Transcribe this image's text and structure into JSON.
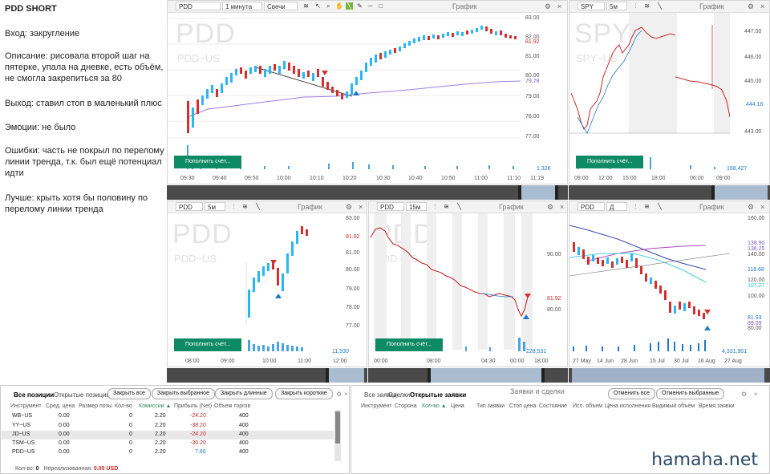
{
  "notes": {
    "title": "PDD SHORT",
    "lines": [
      "Вход: закругление",
      "Описание: рисовала второй шаг на пятерке, упала на дневке, есть объём, не смогла закрепиться за 80",
      "Выход: ставил стоп в маленький плюс",
      "Эмоции: не было",
      "Ошибки: часть не покрыл по перелому линии тренда, т.к. был ещё потенциал идти",
      "Лучше: крыть хотя бы половину по перелому линии тренда"
    ]
  },
  "common": {
    "chart_label": "График",
    "deposit_button": "Пополнить счёт...",
    "close": "×"
  },
  "charts": [
    {
      "ticker": "PDD",
      "timeframe": "1 минута",
      "type": "Свечи",
      "watermark": "PDD",
      "watermark_sub": "PDD~US",
      "y_ticks": [
        "83.00",
        "82.00",
        "81.00",
        "80.00",
        "79.00",
        "78.00",
        "77.00"
      ],
      "price_label": "81.92",
      "ma_label": "79.78",
      "volume_label": "1,326",
      "x_ticks": [
        "09:30",
        "09:40",
        "09:50",
        "10:00",
        "10:10",
        "10:20",
        "10:30",
        "10:40",
        "10:50",
        "11:00",
        "11:10"
      ],
      "extra_x": "11:19"
    },
    {
      "ticker": "SPY",
      "timeframe": "5м",
      "watermark": "SPY",
      "watermark_sub": "SPY~US",
      "y_ticks": [
        "447.00",
        "446.00",
        "445.00",
        "444.00",
        "443.00"
      ],
      "price_label": "444.16",
      "volume_label": "168,427",
      "x_ticks": [
        "09:00",
        "12:00",
        "15:00",
        "18:00",
        "06:00",
        "09:00"
      ]
    },
    {
      "ticker": "PDD",
      "timeframe": "5м",
      "watermark": "PDD",
      "watermark_sub": "PDD~US",
      "y_ticks": [
        "83.00",
        "82.00",
        "81.00",
        "80.00",
        "79.00",
        "78.00",
        "77.00"
      ],
      "price_label": "81.92",
      "volume_label": "11,530",
      "x_ticks": [
        "08:00",
        "09:00",
        "10:00",
        "11:00",
        "12:00"
      ]
    },
    {
      "ticker": "PDD",
      "timeframe": "15м",
      "watermark": "PDD",
      "watermark_sub": "PDD~US",
      "y_ticks": [
        "90.00",
        "80.00"
      ],
      "price_label": "81.92",
      "volume_label": "228,531",
      "x_ticks": [
        "00:00",
        "08:00",
        "04:30",
        "00:00",
        "18:00"
      ]
    },
    {
      "ticker": "PDD",
      "timeframe": "Д",
      "watermark": "",
      "y_ticks": [
        "160.00",
        "140.00",
        "120.00",
        "100.00",
        "80.00"
      ],
      "ma_labels": [
        "138.90",
        "136.25",
        "118.68",
        "107.27",
        "89.09"
      ],
      "price_label": "81.93",
      "volume_label": "4,331,901",
      "x_ticks": [
        "27 May",
        "14 Jun",
        "28 Jun",
        "15 Jul",
        "30 Jul",
        "16 Aug",
        "27 Aug"
      ]
    }
  ],
  "positions": {
    "tabs": [
      "Все позиции",
      "Открытые позиции"
    ],
    "buttons": [
      "Закрыть все",
      "Закрыть выбранное",
      "Закрыть длинные",
      "Закрыть короткие"
    ],
    "columns": [
      "Инструмент",
      "Сред. цена",
      "Размер позы",
      "Кол-во",
      "Комиссии ▲",
      "Прибыль (Net)",
      "Объем торгов"
    ],
    "rows": [
      [
        "WB~US",
        "0.00",
        "",
        "0",
        "2.20",
        "-24.20",
        "400"
      ],
      [
        "YY~US",
        "0.00",
        "",
        "0",
        "2.20",
        "-38.20",
        "400"
      ],
      [
        "JD~US",
        "0.00",
        "",
        "0",
        "2.20",
        "-24.20",
        "400"
      ],
      [
        "TSM~US",
        "0.00",
        "",
        "0",
        "2.20",
        "-30.20",
        "400"
      ],
      [
        "PDD~US",
        "0.00",
        "",
        "0",
        "2.20",
        "7.80",
        "400"
      ]
    ],
    "footer_qty_label": "Кол-во:",
    "footer_qty": "0",
    "footer_unreal_label": "Нереализованная:",
    "footer_unreal": "0.00 USD"
  },
  "orders": {
    "tabs": [
      "Все заявки",
      "Сделки",
      "Открытые заявки"
    ],
    "title": "Заявки и сделки",
    "buttons": [
      "Отменить все",
      "Отменить выбранные"
    ],
    "columns": [
      "Инструмент",
      "Сторона",
      "Кол-во ▲",
      "Цена",
      "Тип заявки",
      "Стоп цена",
      "Состояние",
      "Исп. объем",
      "Цена исполнения",
      "Видимый объем",
      "Время заявки"
    ]
  },
  "brand": "hamaha.net"
}
